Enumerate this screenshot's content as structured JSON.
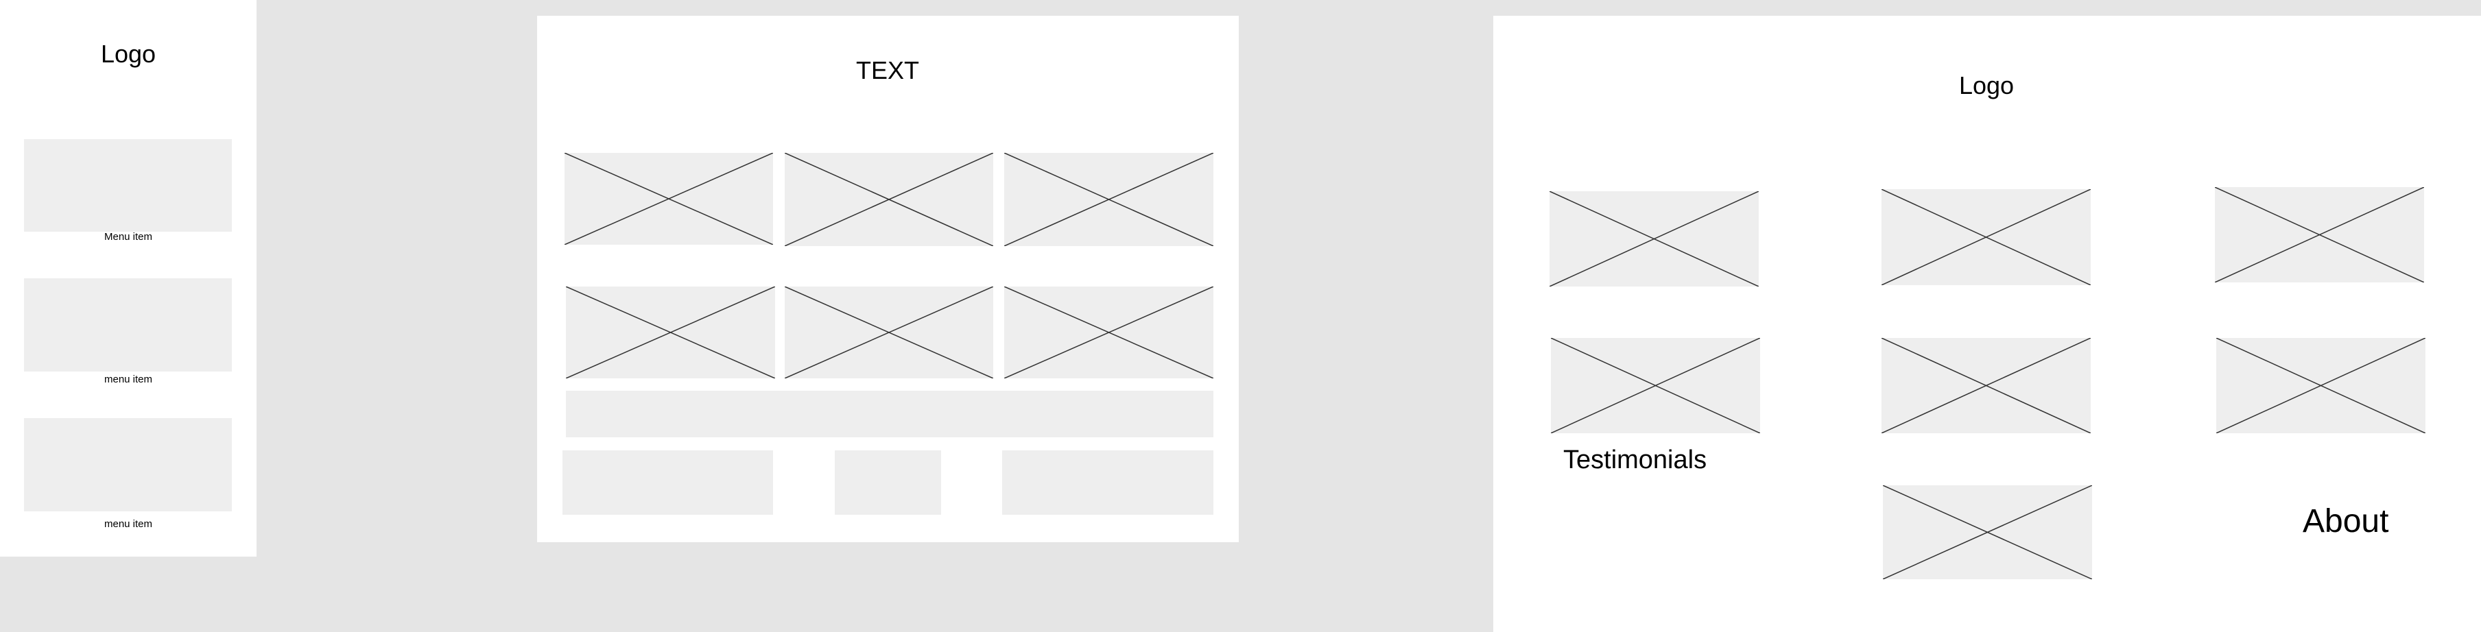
{
  "colors": {
    "canvas": "#e5e5e5",
    "frame": "#ffffff",
    "placeholder": "#eeeeee",
    "line": "#333333"
  },
  "left_frame": {
    "logo": "Logo",
    "menu_items": [
      {
        "label": "Menu item"
      },
      {
        "label": "menu item"
      },
      {
        "label": "menu item"
      }
    ]
  },
  "middle_frame": {
    "title": "TEXT"
  },
  "right_frame": {
    "logo": "Logo",
    "testimonials": "Testimonials",
    "about": "About"
  },
  "icons": {
    "image_placeholder": "image-placeholder-icon"
  }
}
